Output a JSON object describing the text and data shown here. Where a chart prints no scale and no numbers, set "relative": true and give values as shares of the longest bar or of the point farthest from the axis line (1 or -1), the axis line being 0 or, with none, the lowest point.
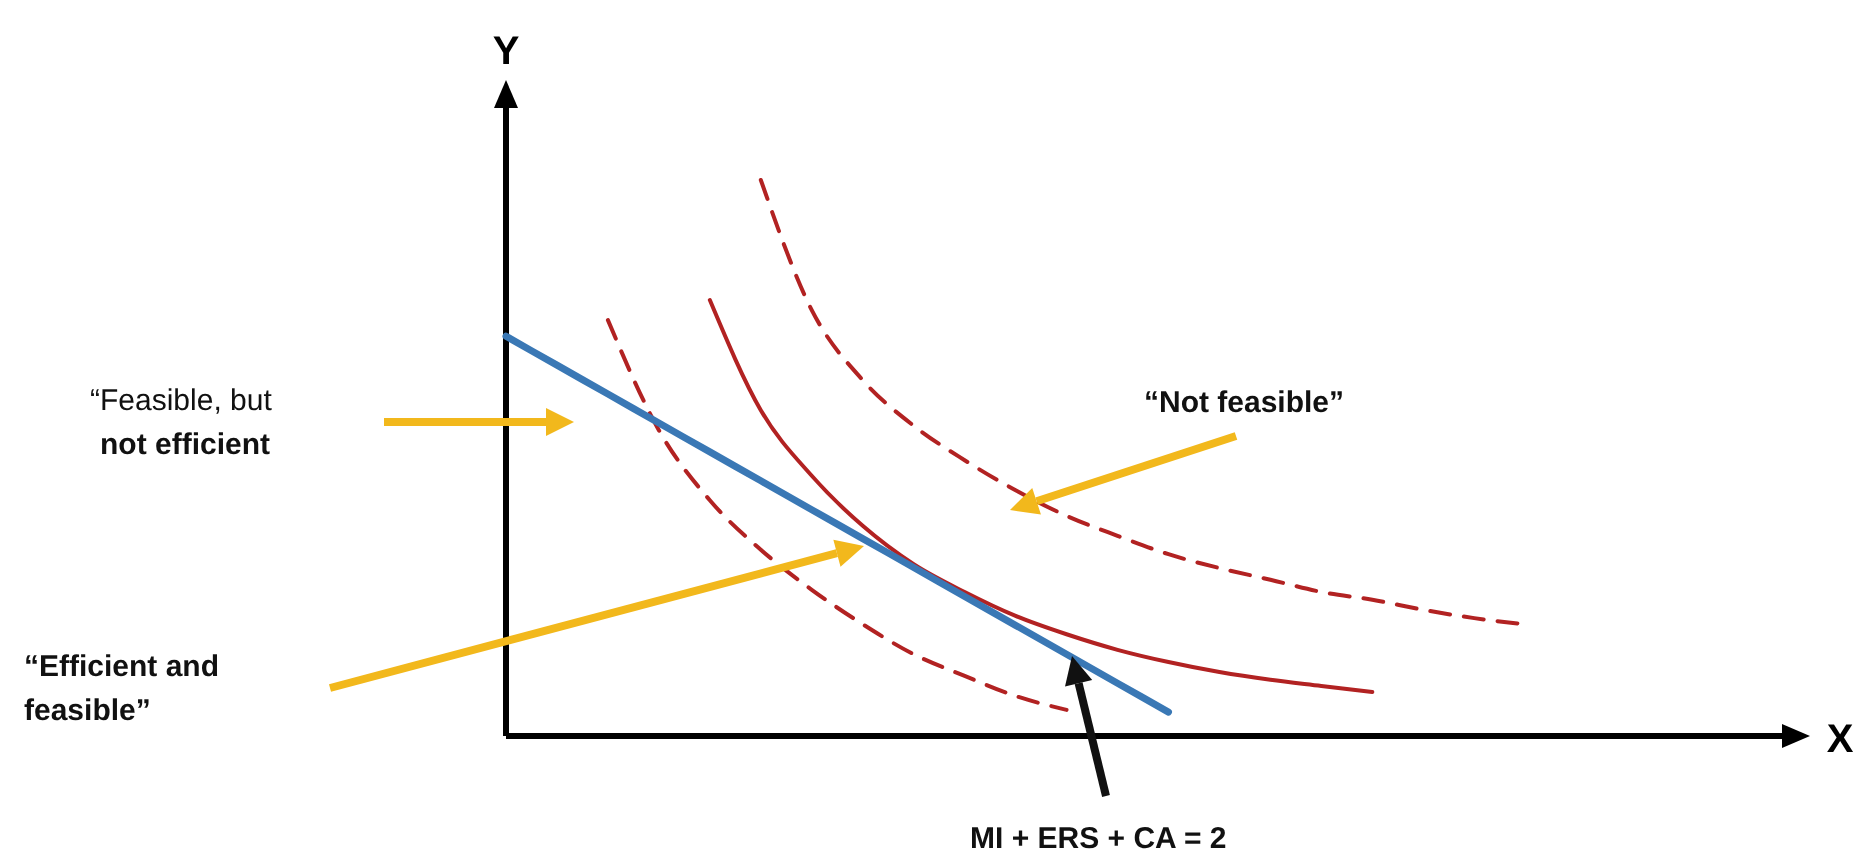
{
  "chart_data": {
    "type": "line",
    "relative": true,
    "xlabel": "X",
    "ylabel": "Y",
    "marker": "none",
    "categories": [
      null,
      null,
      null,
      null,
      null,
      null,
      null,
      null,
      null,
      null,
      null,
      null,
      null,
      null,
      null,
      null,
      null,
      null,
      null,
      null,
      null,
      null,
      null,
      null,
      null,
      null
    ],
    "series": [
      {
        "color": "#b22222",
        "line_style": "dashed",
        "values": [
          null,
          null,
          0.748,
          0.55,
          0.424,
          0.335,
          0.263,
          0.201,
          0.147,
          0.108,
          0.072,
          0.047,
          null,
          null,
          null,
          null,
          null,
          null,
          null,
          null,
          null,
          null,
          null,
          null,
          null,
          null
        ]
      },
      {
        "color": "#b22222",
        "line_style": "solid",
        "values": [
          null,
          null,
          null,
          null,
          0.784,
          0.586,
          0.468,
          0.378,
          0.309,
          0.259,
          0.216,
          0.183,
          0.155,
          0.133,
          0.115,
          0.101,
          0.09,
          0.079,
          null,
          null,
          null,
          null,
          null,
          null,
          null,
          null
        ]
      },
      {
        "color": "#b22222",
        "line_style": "dashed",
        "values": [
          null,
          null,
          null,
          null,
          null,
          1,
          0.766,
          0.64,
          0.558,
          0.496,
          0.442,
          0.396,
          0.36,
          0.327,
          0.302,
          0.281,
          0.259,
          0.245,
          0.227,
          0.212,
          0.201,
          null,
          null,
          null,
          null,
          null
        ]
      },
      {
        "color": "#3a78b5",
        "line_style": "solid",
        "values": [
          0.719,
          0.667,
          0.615,
          0.563,
          0.511,
          0.459,
          0.407,
          0.355,
          0.303,
          0.251,
          0.199,
          0.147,
          0.095,
          0.043,
          null,
          null,
          null,
          null,
          null,
          null,
          null,
          null,
          null,
          null,
          null,
          null
        ]
      }
    ],
    "annotations": [
      "“Feasible, but not efficient",
      "“Not feasible”",
      "“Efficient and feasible”",
      "MI + ERS + CA = 2"
    ]
  }
}
